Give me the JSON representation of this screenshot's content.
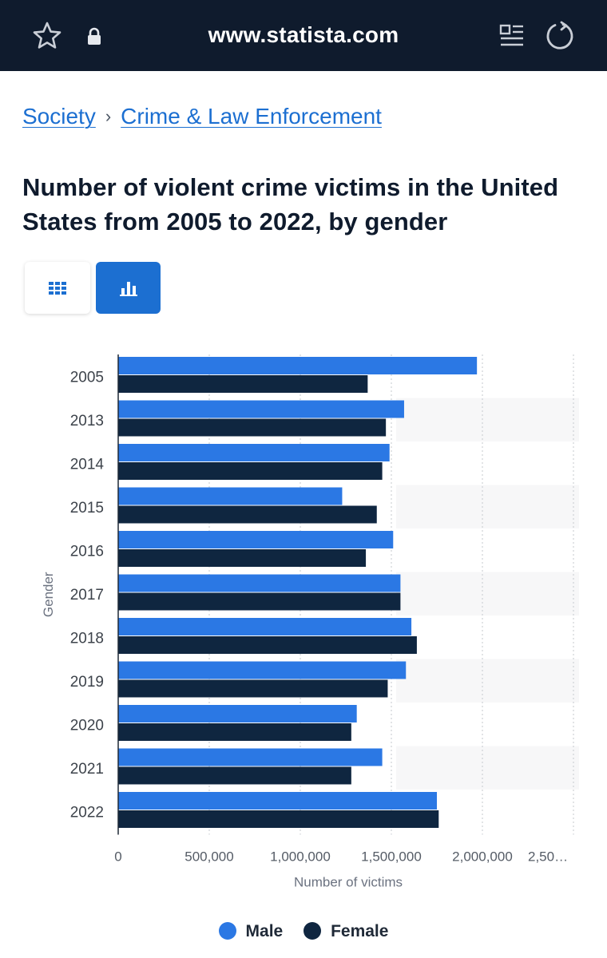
{
  "browser": {
    "url": "www.statista.com",
    "icons": [
      "star-icon",
      "lock-icon",
      "reader-icon",
      "reload-icon"
    ]
  },
  "breadcrumb": {
    "items": [
      "Society",
      "Crime & Law Enforcement"
    ],
    "separator": "›"
  },
  "title": "Number of violent crime victims in the United States from 2005 to 2022, by gender",
  "view_toggle": {
    "table_icon": "table-icon",
    "chart_icon": "bar-chart-icon",
    "active": "chart"
  },
  "colors": {
    "male": "#2b78e4",
    "female": "#0f2640",
    "accent": "#1c6fd1",
    "topbar": "#0f1b2d"
  },
  "chart_data": {
    "type": "bar",
    "orientation": "horizontal",
    "categories": [
      "2005",
      "2013",
      "2014",
      "2015",
      "2016",
      "2017",
      "2018",
      "2019",
      "2020",
      "2021",
      "2022"
    ],
    "series": [
      {
        "name": "Male",
        "values": [
          1970000,
          1570000,
          1490000,
          1230000,
          1510000,
          1550000,
          1610000,
          1580000,
          1310000,
          1450000,
          1750000
        ]
      },
      {
        "name": "Female",
        "values": [
          1370000,
          1470000,
          1450000,
          1420000,
          1360000,
          1550000,
          1640000,
          1480000,
          1280000,
          1280000,
          1760000
        ]
      }
    ],
    "xlabel": "Number of victims",
    "ylabel": "Gender",
    "xlim": [
      0,
      2500000
    ],
    "xticks": [
      "0",
      "500,000",
      "1,000,000",
      "1,500,000",
      "2,000,000",
      "2,50…"
    ],
    "grid": true,
    "legend_position": "bottom"
  }
}
